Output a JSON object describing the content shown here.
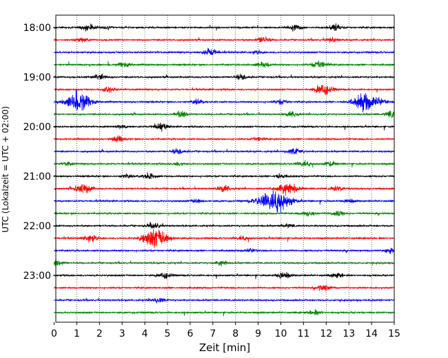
{
  "chart_data": {
    "type": "line",
    "title": "",
    "xlabel": "Zeit  [min]",
    "ylabel": "UTC (Lokalzeit = UTC + 02:00)",
    "xlim": [
      0,
      15
    ],
    "x_ticks": [
      "0",
      "1",
      "2",
      "3",
      "4",
      "5",
      "6",
      "7",
      "8",
      "9",
      "10",
      "11",
      "12",
      "13",
      "14",
      "15"
    ],
    "y_tick_labels": [
      "18:00",
      "19:00",
      "20:00",
      "21:00",
      "22:00",
      "23:00"
    ],
    "grid": "vertical dotted",
    "trace_interval_minutes": 15,
    "colors": [
      "#000000",
      "#ff0000",
      "#0000ff",
      "#008000"
    ],
    "series": [
      {
        "start": "18:00",
        "color": "#000000",
        "events": [
          {
            "t": 1.5,
            "amp": 0.35
          },
          {
            "t": 2.3,
            "amp": 0.15
          },
          {
            "t": 10.6,
            "amp": 0.35
          },
          {
            "t": 12.4,
            "amp": 0.3
          }
        ]
      },
      {
        "start": "18:15",
        "color": "#ff0000",
        "events": [
          {
            "t": 1.2,
            "amp": 0.2
          },
          {
            "t": 9.2,
            "amp": 0.3
          },
          {
            "t": 12.3,
            "amp": 0.2
          }
        ]
      },
      {
        "start": "18:30",
        "color": "#0000ff",
        "events": [
          {
            "t": 6.9,
            "amp": 0.4
          },
          {
            "t": 9.0,
            "amp": 0.15
          }
        ]
      },
      {
        "start": "18:45",
        "color": "#008000",
        "events": [
          {
            "t": 3.1,
            "amp": 0.3
          },
          {
            "t": 9.2,
            "amp": 0.3
          },
          {
            "t": 11.7,
            "amp": 0.4
          }
        ]
      },
      {
        "start": "19:00",
        "color": "#000000",
        "events": [
          {
            "t": 2.0,
            "amp": 0.35
          },
          {
            "t": 8.3,
            "amp": 0.3
          }
        ]
      },
      {
        "start": "19:15",
        "color": "#ff0000",
        "events": [
          {
            "t": 2.4,
            "amp": 0.3
          },
          {
            "t": 11.9,
            "amp": 0.55
          }
        ]
      },
      {
        "start": "19:30",
        "color": "#0000ff",
        "events": [
          {
            "t": 1.1,
            "amp": 1.05
          },
          {
            "t": 6.3,
            "amp": 0.25
          },
          {
            "t": 10.0,
            "amp": 0.25
          },
          {
            "t": 13.8,
            "amp": 1.05
          }
        ]
      },
      {
        "start": "19:45",
        "color": "#008000",
        "events": [
          {
            "t": 5.6,
            "amp": 0.3
          },
          {
            "t": 10.5,
            "amp": 0.3
          },
          {
            "t": 14.9,
            "amp": 0.35
          }
        ]
      },
      {
        "start": "20:00",
        "color": "#000000",
        "events": [
          {
            "t": 4.7,
            "amp": 0.4
          },
          {
            "t": 3.0,
            "amp": 0.15
          }
        ]
      },
      {
        "start": "20:15",
        "color": "#ff0000",
        "events": [
          {
            "t": 2.8,
            "amp": 0.3
          },
          {
            "t": 9.0,
            "amp": 0.2
          }
        ]
      },
      {
        "start": "20:30",
        "color": "#0000ff",
        "events": [
          {
            "t": 5.5,
            "amp": 0.3
          },
          {
            "t": 10.6,
            "amp": 0.35
          }
        ]
      },
      {
        "start": "20:45",
        "color": "#008000",
        "events": [
          {
            "t": 0.6,
            "amp": 0.2
          },
          {
            "t": 5.5,
            "amp": 0.15
          },
          {
            "t": 11.0,
            "amp": 0.35
          },
          {
            "t": 12.2,
            "amp": 0.25
          }
        ]
      },
      {
        "start": "21:00",
        "color": "#000000",
        "events": [
          {
            "t": 3.2,
            "amp": 0.2
          },
          {
            "t": 4.2,
            "amp": 0.35
          },
          {
            "t": 10.0,
            "amp": 0.2
          }
        ]
      },
      {
        "start": "21:15",
        "color": "#ff0000",
        "events": [
          {
            "t": 1.3,
            "amp": 0.55
          },
          {
            "t": 7.5,
            "amp": 0.35
          },
          {
            "t": 10.3,
            "amp": 0.75
          },
          {
            "t": 12.5,
            "amp": 0.3
          }
        ]
      },
      {
        "start": "21:30",
        "color": "#0000ff",
        "events": [
          {
            "t": 6.3,
            "amp": 0.25
          },
          {
            "t": 9.7,
            "amp": 1.35
          },
          {
            "t": 13.0,
            "amp": 0.2
          }
        ]
      },
      {
        "start": "21:45",
        "color": "#008000",
        "events": [
          {
            "t": 11.2,
            "amp": 0.3
          },
          {
            "t": 12.5,
            "amp": 0.3
          }
        ]
      },
      {
        "start": "22:00",
        "color": "#000000",
        "events": [
          {
            "t": 4.4,
            "amp": 0.3
          },
          {
            "t": 10.3,
            "amp": 0.2
          }
        ]
      },
      {
        "start": "22:15",
        "color": "#ff0000",
        "events": [
          {
            "t": 1.6,
            "amp": 0.35
          },
          {
            "t": 4.5,
            "amp": 1.05
          },
          {
            "t": 8.3,
            "amp": 0.25
          }
        ]
      },
      {
        "start": "22:30",
        "color": "#0000ff",
        "events": [
          {
            "t": 8.6,
            "amp": 0.2
          },
          {
            "t": 14.8,
            "amp": 0.25
          }
        ]
      },
      {
        "start": "22:45",
        "color": "#008000",
        "events": [
          {
            "t": 0.1,
            "amp": 0.3
          },
          {
            "t": 7.4,
            "amp": 0.3
          }
        ]
      },
      {
        "start": "23:00",
        "color": "#000000",
        "events": [
          {
            "t": 4.9,
            "amp": 0.3
          },
          {
            "t": 10.1,
            "amp": 0.35
          },
          {
            "t": 12.5,
            "amp": 0.25
          }
        ]
      },
      {
        "start": "23:15",
        "color": "#ff0000",
        "events": [
          {
            "t": 11.9,
            "amp": 0.35
          }
        ]
      },
      {
        "start": "23:30",
        "color": "#0000ff",
        "events": [
          {
            "t": 4.6,
            "amp": 0.3
          }
        ]
      },
      {
        "start": "23:45",
        "color": "#008000",
        "events": [
          {
            "t": 11.5,
            "amp": 0.25
          }
        ]
      }
    ]
  }
}
